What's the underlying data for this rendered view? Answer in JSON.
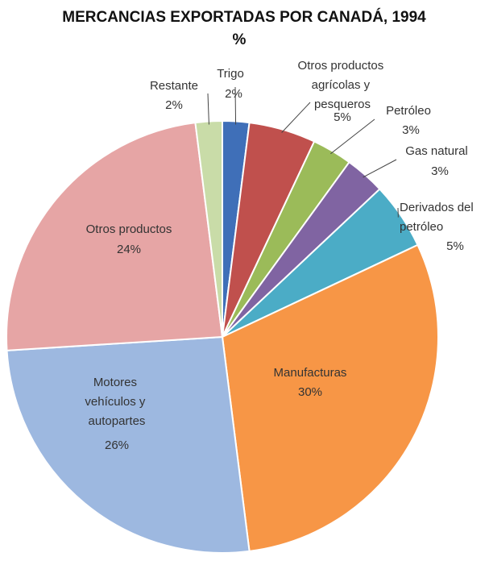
{
  "chart_data": {
    "type": "pie",
    "title": "MERCANCIAS EXPORTADAS POR CANADÁ, 1994",
    "subtitle": "%",
    "categories": [
      "Trigo",
      "Otros productos agrícolas y pesqueros",
      "Petróleo",
      "Gas natural",
      "Derivados del petróleo",
      "Manufacturas",
      "Motores vehículos y autopartes",
      "Otros productos",
      "Restante"
    ],
    "values": [
      2,
      5,
      3,
      3,
      5,
      30,
      26,
      24,
      2
    ],
    "value_labels": [
      "2%",
      "5%",
      "3%",
      "3%",
      "5%",
      "30%",
      "26%",
      "24%",
      "2%"
    ],
    "colors": [
      "#3f6fb8",
      "#c0504d",
      "#9bbb59",
      "#8064a2",
      "#4bacc6",
      "#f79646",
      "#9db8e0",
      "#e6a5a5",
      "#c9dca8"
    ]
  }
}
